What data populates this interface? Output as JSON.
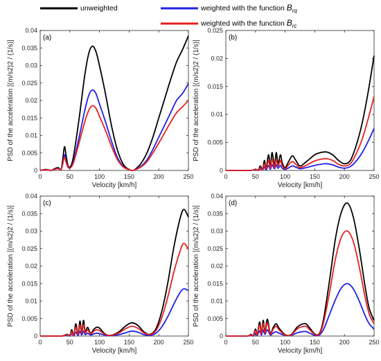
{
  "legend": {
    "items": [
      {
        "label": "unweighted",
        "color": "#000000"
      },
      {
        "label": "weighted with the function ",
        "sym": "B",
        "sub": "rq",
        "color": "#1f1fe6"
      },
      {
        "label": "weighted with the function ",
        "sym": "B",
        "sub": "rc",
        "color": "#e61f1f"
      }
    ]
  },
  "chart_data": [
    {
      "type": "line",
      "panel_label": "(a)",
      "xlabel": "Velocity [km/h]",
      "ylabel": "PSD of the acceleration [(m/s2)2 / (1/s)]",
      "xlim": [
        0,
        250
      ],
      "ylim": [
        0,
        0.04
      ],
      "xticks": [
        "0",
        "50",
        "100",
        "150",
        "200",
        "250"
      ],
      "yticks": [
        "0",
        "0.005",
        "0.01",
        "0.015",
        "0.02",
        "0.025",
        "0.03",
        "0.035",
        "0.04"
      ],
      "series": [
        {
          "name": "unweighted",
          "color": "#000000",
          "x": [
            0,
            10,
            18,
            22,
            30,
            35,
            38,
            41,
            44,
            48,
            55,
            65,
            75,
            82,
            88,
            94,
            100,
            110,
            120,
            130,
            140,
            150,
            155,
            160,
            170,
            180,
            190,
            200,
            210,
            220,
            230,
            240,
            250
          ],
          "y": [
            0,
            0.0003,
            0,
            0.0003,
            0.0008,
            0.0002,
            0.003,
            0.0068,
            0.004,
            0.001,
            0.003,
            0.014,
            0.027,
            0.0335,
            0.0355,
            0.034,
            0.03,
            0.022,
            0.013,
            0.006,
            0.0018,
            0.0002,
            0,
            0.0003,
            0.002,
            0.005,
            0.0095,
            0.015,
            0.0205,
            0.026,
            0.031,
            0.0345,
            0.0385
          ]
        },
        {
          "name": "weighted with the function Brq",
          "color": "#1f1fe6",
          "x": [
            0,
            10,
            18,
            22,
            30,
            35,
            38,
            41,
            44,
            48,
            55,
            65,
            75,
            82,
            88,
            94,
            100,
            110,
            120,
            130,
            140,
            150,
            155,
            160,
            170,
            180,
            190,
            200,
            210,
            220,
            230,
            240,
            250
          ],
          "y": [
            0,
            0.0002,
            0,
            0.0002,
            0.0006,
            0.0002,
            0.002,
            0.0045,
            0.0025,
            0.0008,
            0.002,
            0.009,
            0.017,
            0.0215,
            0.023,
            0.022,
            0.019,
            0.014,
            0.0085,
            0.0038,
            0.0012,
            0.0002,
            0,
            0.0002,
            0.0012,
            0.003,
            0.006,
            0.0095,
            0.013,
            0.0165,
            0.02,
            0.022,
            0.0248
          ]
        },
        {
          "name": "weighted with the function Brc",
          "color": "#e61f1f",
          "x": [
            0,
            10,
            18,
            22,
            30,
            35,
            38,
            41,
            44,
            48,
            55,
            65,
            75,
            82,
            88,
            94,
            100,
            110,
            120,
            130,
            140,
            150,
            155,
            160,
            170,
            180,
            190,
            200,
            210,
            220,
            230,
            240,
            250
          ],
          "y": [
            0,
            0.0002,
            0,
            0.0002,
            0.0005,
            0.0002,
            0.0018,
            0.0038,
            0.0022,
            0.0007,
            0.0017,
            0.0075,
            0.0138,
            0.0172,
            0.0185,
            0.0178,
            0.0155,
            0.0115,
            0.007,
            0.0032,
            0.001,
            0.0002,
            0,
            0.0002,
            0.001,
            0.0025,
            0.005,
            0.0078,
            0.0108,
            0.0138,
            0.0165,
            0.0182,
            0.02
          ]
        }
      ]
    },
    {
      "type": "line",
      "panel_label": "(b)",
      "xlabel": "Velocity [km/h]",
      "ylabel": "PSD of the acceleration [(m/s2)2 / (1/s)]",
      "xlim": [
        0,
        250
      ],
      "ylim": [
        0,
        0.025
      ],
      "xticks": [
        "0",
        "50",
        "100",
        "150",
        "200",
        "250"
      ],
      "yticks": [
        "0",
        "0.005",
        "0.01",
        "0.015",
        "0.02",
        "0.025"
      ],
      "series": [
        {
          "name": "unweighted",
          "color": "#000000",
          "x": [
            0,
            40,
            50,
            55,
            58,
            62,
            65,
            68,
            72,
            75,
            78,
            82,
            85,
            88,
            92,
            95,
            100,
            105,
            112,
            118,
            125,
            135,
            150,
            160,
            170,
            180,
            190,
            200,
            210,
            220,
            230,
            240,
            250
          ],
          "y": [
            0,
            0,
            0.0002,
            0.0001,
            0.0008,
            0.0002,
            0.0018,
            0.0004,
            0.0028,
            0.0006,
            0.0032,
            0.0008,
            0.0032,
            0.0012,
            0.0028,
            0.0014,
            0.0005,
            0.0014,
            0.0026,
            0.0018,
            0.0008,
            0.0015,
            0.0028,
            0.0032,
            0.0033,
            0.0028,
            0.0018,
            0.0012,
            0.0018,
            0.0045,
            0.0085,
            0.014,
            0.0205
          ]
        },
        {
          "name": "weighted with the function Brq",
          "color": "#1f1fe6",
          "x": [
            0,
            40,
            50,
            55,
            58,
            62,
            65,
            68,
            72,
            75,
            78,
            82,
            85,
            88,
            92,
            95,
            100,
            105,
            112,
            118,
            125,
            135,
            150,
            160,
            170,
            180,
            190,
            200,
            210,
            220,
            230,
            240,
            250
          ],
          "y": [
            0,
            0,
            0.0001,
            0,
            0.0003,
            0.0001,
            0.0006,
            0.0001,
            0.0009,
            0.0002,
            0.001,
            0.0003,
            0.001,
            0.0004,
            0.0009,
            0.0004,
            0.0002,
            0.0004,
            0.0008,
            0.0006,
            0.0003,
            0.0005,
            0.0009,
            0.0011,
            0.0012,
            0.001,
            0.0006,
            0.0004,
            0.0007,
            0.0017,
            0.0032,
            0.0052,
            0.0075
          ]
        },
        {
          "name": "weighted with the function Brc",
          "color": "#e61f1f",
          "x": [
            0,
            40,
            50,
            55,
            58,
            62,
            65,
            68,
            72,
            75,
            78,
            82,
            85,
            88,
            92,
            95,
            100,
            105,
            112,
            118,
            125,
            135,
            150,
            160,
            170,
            180,
            190,
            200,
            210,
            220,
            230,
            240,
            250
          ],
          "y": [
            0,
            0,
            0.0002,
            0,
            0.0005,
            0.0001,
            0.0012,
            0.0003,
            0.0018,
            0.0004,
            0.002,
            0.0005,
            0.002,
            0.0008,
            0.0018,
            0.0009,
            0.0003,
            0.0009,
            0.0016,
            0.0011,
            0.0005,
            0.0009,
            0.0017,
            0.002,
            0.0021,
            0.0018,
            0.0011,
            0.0008,
            0.0012,
            0.003,
            0.0056,
            0.0092,
            0.0132
          ]
        }
      ]
    },
    {
      "type": "line",
      "panel_label": "(c)",
      "xlabel": "Velocity [km/h]",
      "ylabel": "PSD of the acceleration [(m/s2)2 / (1/s)]",
      "xlim": [
        0,
        250
      ],
      "ylim": [
        0,
        0.04
      ],
      "xticks": [
        "0",
        "50",
        "100",
        "150",
        "200",
        "250"
      ],
      "yticks": [
        "0",
        "0.005",
        "0.01",
        "0.015",
        "0.02",
        "0.025",
        "0.03",
        "0.035",
        "0.04"
      ],
      "series": [
        {
          "name": "unweighted",
          "color": "#000000",
          "x": [
            0,
            35,
            45,
            50,
            53,
            57,
            60,
            64,
            67,
            70,
            73,
            76,
            80,
            85,
            90,
            95,
            100,
            108,
            115,
            125,
            135,
            145,
            155,
            165,
            175,
            185,
            195,
            205,
            215,
            225,
            235,
            242,
            250
          ],
          "y": [
            0,
            0,
            0.0005,
            0.0001,
            0.0018,
            0.0003,
            0.0035,
            0.0006,
            0.0043,
            0.001,
            0.0045,
            0.0012,
            0.0025,
            0.0008,
            0.0018,
            0.0025,
            0.0023,
            0.0008,
            0.0002,
            0.0005,
            0.0015,
            0.003,
            0.0038,
            0.003,
            0.0012,
            0.0005,
            0.002,
            0.007,
            0.015,
            0.025,
            0.033,
            0.0362,
            0.034
          ]
        },
        {
          "name": "weighted with the function Brq",
          "color": "#1f1fe6",
          "x": [
            0,
            35,
            45,
            50,
            53,
            57,
            60,
            64,
            67,
            70,
            73,
            76,
            80,
            85,
            90,
            95,
            100,
            108,
            115,
            125,
            135,
            145,
            155,
            165,
            175,
            185,
            195,
            205,
            215,
            225,
            235,
            242,
            250
          ],
          "y": [
            0,
            0,
            0.0002,
            0,
            0.0006,
            0.0001,
            0.0011,
            0.0002,
            0.0014,
            0.0003,
            0.0014,
            0.0004,
            0.0008,
            0.0003,
            0.0006,
            0.0008,
            0.0007,
            0.0003,
            0.0001,
            0.0002,
            0.0005,
            0.001,
            0.0014,
            0.0011,
            0.0004,
            0.0002,
            0.0008,
            0.0026,
            0.0055,
            0.009,
            0.0122,
            0.0135,
            0.013
          ]
        },
        {
          "name": "weighted with the function Brc",
          "color": "#e61f1f",
          "x": [
            0,
            35,
            45,
            50,
            53,
            57,
            60,
            64,
            67,
            70,
            73,
            76,
            80,
            85,
            90,
            95,
            100,
            108,
            115,
            125,
            135,
            145,
            155,
            165,
            175,
            185,
            195,
            205,
            215,
            225,
            235,
            242,
            250
          ],
          "y": [
            0,
            0,
            0.0004,
            0.0001,
            0.0013,
            0.0002,
            0.0026,
            0.0005,
            0.0032,
            0.0008,
            0.0033,
            0.0009,
            0.0018,
            0.0006,
            0.0013,
            0.0018,
            0.0016,
            0.0006,
            0.0002,
            0.0004,
            0.0011,
            0.0022,
            0.0028,
            0.0022,
            0.0009,
            0.0004,
            0.0015,
            0.0052,
            0.011,
            0.018,
            0.0238,
            0.0265,
            0.0248
          ]
        }
      ]
    },
    {
      "type": "line",
      "panel_label": "(d)",
      "xlabel": "Velocity [km/h]",
      "ylabel": "PSD of the acceleration [(m/s2)2 / (1/s)]",
      "xlim": [
        0,
        250
      ],
      "ylim": [
        0,
        0.04
      ],
      "xticks": [
        "0",
        "50",
        "100",
        "150",
        "200",
        "250"
      ],
      "yticks": [
        "0",
        "0.005",
        "0.01",
        "0.015",
        "0.02",
        "0.025",
        "0.03",
        "0.035",
        "0.04"
      ],
      "series": [
        {
          "name": "unweighted",
          "color": "#000000",
          "x": [
            0,
            35,
            42,
            46,
            50,
            53,
            57,
            60,
            63,
            66,
            70,
            75,
            80,
            85,
            90,
            100,
            110,
            120,
            127,
            135,
            142,
            150,
            158,
            165,
            175,
            185,
            195,
            205,
            215,
            225,
            235,
            242,
            250
          ],
          "y": [
            0,
            0,
            0.0005,
            0.0001,
            0.002,
            0.0005,
            0.004,
            0.0008,
            0.0045,
            0.0012,
            0.0048,
            0.0008,
            0.0025,
            0.0035,
            0.0022,
            0.0004,
            0.0004,
            0.0025,
            0.0033,
            0.0035,
            0.0022,
            0.0006,
            0.0008,
            0.005,
            0.016,
            0.028,
            0.0355,
            0.038,
            0.034,
            0.025,
            0.014,
            0.0078,
            0.0045
          ]
        },
        {
          "name": "weighted with the function Brq",
          "color": "#1f1fe6",
          "x": [
            0,
            35,
            42,
            46,
            50,
            53,
            57,
            60,
            63,
            66,
            70,
            75,
            80,
            85,
            90,
            100,
            110,
            120,
            127,
            135,
            142,
            150,
            158,
            165,
            175,
            185,
            195,
            205,
            215,
            225,
            235,
            242,
            250
          ],
          "y": [
            0,
            0,
            0.0002,
            0,
            0.0008,
            0.0002,
            0.0015,
            0.0003,
            0.0017,
            0.0005,
            0.0018,
            0.0003,
            0.0009,
            0.0012,
            0.0008,
            0.0002,
            0.0002,
            0.0009,
            0.0012,
            0.0013,
            0.0008,
            0.0002,
            0.0003,
            0.002,
            0.0062,
            0.0105,
            0.0138,
            0.015,
            0.0135,
            0.01,
            0.0058,
            0.0035,
            0.002
          ]
        },
        {
          "name": "weighted with the function Brc",
          "color": "#e61f1f",
          "x": [
            0,
            35,
            42,
            46,
            50,
            53,
            57,
            60,
            63,
            66,
            70,
            75,
            80,
            85,
            90,
            100,
            110,
            120,
            127,
            135,
            142,
            150,
            158,
            165,
            175,
            185,
            195,
            205,
            215,
            225,
            235,
            242,
            250
          ],
          "y": [
            0,
            0,
            0.0004,
            0.0001,
            0.0016,
            0.0004,
            0.0032,
            0.0006,
            0.0036,
            0.0009,
            0.0038,
            0.0006,
            0.002,
            0.0028,
            0.0017,
            0.0003,
            0.0003,
            0.002,
            0.0026,
            0.0028,
            0.0017,
            0.0005,
            0.0006,
            0.004,
            0.0125,
            0.0222,
            0.0283,
            0.03,
            0.027,
            0.0198,
            0.011,
            0.0062,
            0.0035
          ]
        }
      ]
    }
  ]
}
